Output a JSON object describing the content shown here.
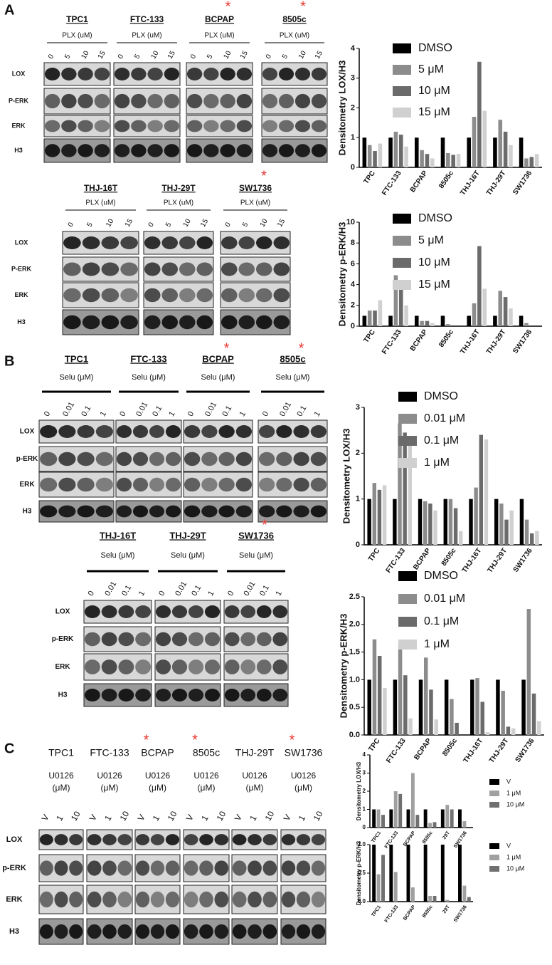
{
  "panels": [
    {
      "letter": "A",
      "blocks": [
        {
          "rows": [
            "LOX",
            "P-ERK",
            "ERK",
            "H3"
          ],
          "groups": [
            {
              "cell_line": "TPC1",
              "treatment": [
                "PLX (uM)"
              ],
              "doses": [
                "0",
                "5",
                "10",
                "15"
              ]
            },
            {
              "cell_line": "FTC-133",
              "treatment": [
                "PLX (uM)"
              ],
              "doses": [
                "0",
                "5",
                "10",
                "15"
              ]
            },
            {
              "cell_line": "BCPAP",
              "star": "*",
              "treatment": [
                "PLX (uM)"
              ],
              "doses": [
                "0",
                "5",
                "10",
                "15"
              ]
            },
            {
              "cell_line": "8505c",
              "star": "*",
              "treatment": [
                "PLX (uM)"
              ],
              "doses": [
                "0",
                "5",
                "10",
                "15"
              ]
            }
          ]
        },
        {
          "rows": [
            "LOX",
            "P-ERK",
            "ERK",
            "H3"
          ],
          "groups": [
            {
              "cell_line": "THJ-16T",
              "treatment": [
                "PLX (uM)"
              ],
              "doses": [
                "0",
                "5",
                "10",
                "15"
              ]
            },
            {
              "cell_line": "THJ-29T",
              "treatment": [
                "PLX (uM)"
              ],
              "doses": [
                "0",
                "5",
                "10",
                "15"
              ]
            },
            {
              "cell_line": "SW1736",
              "star": "*",
              "treatment": [
                "PLX (uM)"
              ],
              "doses": [
                "0",
                "5",
                "10",
                "15"
              ]
            }
          ]
        }
      ]
    },
    {
      "letter": "B",
      "blocks": [
        {
          "rows": [
            "LOX",
            "p-ERK",
            "ERK",
            "H3"
          ],
          "groups": [
            {
              "cell_line": "TPC1",
              "treatment": [
                "Selu (μM)"
              ],
              "doses": [
                "0",
                "0.01",
                "0.1",
                "1"
              ]
            },
            {
              "cell_line": "FTC-133",
              "treatment": [
                "Selu (μM)"
              ],
              "doses": [
                "0",
                "0.01",
                "0.1",
                "1"
              ]
            },
            {
              "cell_line": "BCPAP",
              "star": "*",
              "treatment": [
                "Selu (μM)"
              ],
              "doses": [
                "0",
                "0.01",
                "0.1",
                "1"
              ]
            },
            {
              "cell_line": "8505c",
              "star": "*",
              "treatment": [
                "Selu (μM)"
              ],
              "doses": [
                "0",
                "0.01",
                "0.1",
                "1"
              ]
            }
          ]
        },
        {
          "rows": [
            "LOX",
            "p-ERK",
            "ERK",
            "H3"
          ],
          "groups": [
            {
              "cell_line": "THJ-16T",
              "treatment": [
                "Selu (μM)"
              ],
              "doses": [
                "0",
                "0.01",
                "0.1",
                "1"
              ]
            },
            {
              "cell_line": "THJ-29T",
              "treatment": [
                "Selu (μM)"
              ],
              "doses": [
                "0",
                "0.01",
                "0.1",
                "1"
              ]
            },
            {
              "cell_line": "SW1736",
              "star": "*",
              "treatment": [
                "Selu (μM)"
              ],
              "doses": [
                "0",
                "0.01",
                "0.1",
                "1"
              ]
            }
          ]
        }
      ]
    },
    {
      "letter": "C",
      "blocks": [
        {
          "rows": [
            "LOX",
            "p-ERK",
            "ERK",
            "H3"
          ],
          "groups": [
            {
              "cell_line": "TPC1",
              "treatment": [
                "U0126",
                "(μM)"
              ],
              "doses": [
                "V",
                "1",
                "10"
              ]
            },
            {
              "cell_line": "FTC-133",
              "treatment": [
                "U0126",
                "(μM)"
              ],
              "doses": [
                "V",
                "1",
                "10"
              ]
            },
            {
              "cell_line": "BCPAP",
              "star": "*",
              "treatment": [
                "U0126",
                "(μM)"
              ],
              "doses": [
                "V",
                "1",
                "10"
              ]
            },
            {
              "cell_line": "8505c",
              "star": "*",
              "treatment": [
                "U0126",
                "(μM)"
              ],
              "doses": [
                "V",
                "1",
                "10"
              ]
            },
            {
              "cell_line": "THJ-29T",
              "treatment": [
                "U0126",
                "(μM)"
              ],
              "doses": [
                "V",
                "1",
                "10"
              ]
            },
            {
              "cell_line": "SW1736",
              "star": "*",
              "treatment": [
                "U0126",
                "(μM)"
              ],
              "doses": [
                "V",
                "1",
                "10"
              ]
            }
          ]
        }
      ]
    }
  ],
  "chart_data": [
    {
      "type": "bar",
      "y_label": "Densitometry LOX/H3",
      "categories": [
        "TPC",
        "FTC-133",
        "BCPAP",
        "8505c",
        "THJ-16T",
        "THJ-29T",
        "SW1736"
      ],
      "series": [
        {
          "name": "DMSO",
          "color": "#000000",
          "values": [
            1,
            1,
            1,
            1,
            1,
            1,
            1
          ]
        },
        {
          "name": "5 μM",
          "color": "#8c8c8c",
          "values": [
            0.75,
            1.2,
            0.58,
            0.48,
            1.7,
            1.6,
            0.3
          ]
        },
        {
          "name": "10 μM",
          "color": "#6b6b6b",
          "values": [
            0.55,
            1.1,
            0.45,
            0.42,
            3.55,
            1.2,
            0.35
          ]
        },
        {
          "name": "15 μM",
          "color": "#d0d0d0",
          "values": [
            0.8,
            0.7,
            0.3,
            0.45,
            1.9,
            0.75,
            0.45
          ]
        }
      ],
      "ylim": [
        0,
        4
      ],
      "yticks": [
        0,
        1,
        2,
        3,
        4
      ],
      "legend": "top-right"
    },
    {
      "type": "bar",
      "y_label": "Densitometry p-ERK/H3",
      "categories": [
        "TPC",
        "FTC-133",
        "BCPAP",
        "8505c",
        "THJ-16T",
        "THJ-29T",
        "SW1736"
      ],
      "series": [
        {
          "name": "DMSO",
          "color": "#000000",
          "values": [
            1,
            1,
            1,
            1,
            1,
            1,
            1
          ]
        },
        {
          "name": "5 μM",
          "color": "#8c8c8c",
          "values": [
            1.5,
            4.9,
            0.5,
            0.2,
            2.2,
            3.4,
            0.3
          ]
        },
        {
          "name": "10 μM",
          "color": "#6b6b6b",
          "values": [
            1.5,
            3.5,
            0.5,
            0,
            7.7,
            2.8,
            0
          ]
        },
        {
          "name": "15 μM",
          "color": "#d0d0d0",
          "values": [
            2.5,
            2.0,
            0.3,
            0,
            3.6,
            1.7,
            0
          ]
        }
      ],
      "ylim": [
        0,
        10
      ],
      "yticks": [
        0,
        2,
        4,
        6,
        8,
        10
      ],
      "legend": "top-right"
    },
    {
      "type": "bar",
      "y_label": "Densitometry LOX/H3",
      "categories": [
        "TPC",
        "FTC-133",
        "BCPAP",
        "8505c",
        "THJ-16T",
        "THJ-29T",
        "SW1736"
      ],
      "series": [
        {
          "name": "DMSO",
          "color": "#000000",
          "values": [
            1,
            1,
            1,
            1,
            1,
            1,
            1
          ]
        },
        {
          "name": "0.01 μM",
          "color": "#8c8c8c",
          "values": [
            1.35,
            2.65,
            0.95,
            1.0,
            1.25,
            0.9,
            0.55
          ]
        },
        {
          "name": "0.1 μM",
          "color": "#6b6b6b",
          "values": [
            1.2,
            2.45,
            0.9,
            0.8,
            2.4,
            0.55,
            0.25
          ]
        },
        {
          "name": "1 μM",
          "color": "#d0d0d0",
          "values": [
            1.3,
            2.35,
            0.75,
            0.3,
            2.3,
            0.75,
            0.3
          ]
        }
      ],
      "ylim": [
        0,
        3
      ],
      "yticks": [
        0,
        1,
        2,
        3
      ],
      "legend": "top-right"
    },
    {
      "type": "bar",
      "y_label": "Densitometry p-ERK/H3",
      "categories": [
        "TPC",
        "FTC-133",
        "BCPAP",
        "8505c",
        "THJ-16T",
        "THJ-29T",
        "SW1736"
      ],
      "series": [
        {
          "name": "DMSO",
          "color": "#000000",
          "values": [
            1,
            1,
            1,
            1,
            1,
            1,
            1
          ]
        },
        {
          "name": "0.01 μM",
          "color": "#8c8c8c",
          "values": [
            1.73,
            1.68,
            1.4,
            0.65,
            1.03,
            0.8,
            2.28
          ]
        },
        {
          "name": "0.1 μM",
          "color": "#6b6b6b",
          "values": [
            1.43,
            1.08,
            0.82,
            0.22,
            0.6,
            0.15,
            0.75
          ]
        },
        {
          "name": "1 μM",
          "color": "#d0d0d0",
          "values": [
            0.85,
            0.3,
            0.28,
            0,
            0.05,
            0.12,
            0.25
          ]
        }
      ],
      "ylim": [
        0,
        2.5
      ],
      "yticks": [
        {
          "value": 0,
          "label": "0.0"
        },
        0.5,
        {
          "value": 1,
          "label": "1.0"
        },
        1.5,
        {
          "value": 2,
          "label": "2.0"
        },
        2.5
      ],
      "legend": "top-right"
    },
    {
      "type": "bar",
      "y_label": "Densitometry LOX/H3",
      "categories": [
        "TPC1",
        "FTC-133",
        "BCPAP",
        "8505c",
        "29T",
        "SW1736"
      ],
      "series": [
        {
          "name": "V",
          "color": "#000000",
          "values": [
            1,
            1,
            1,
            1,
            1,
            1
          ]
        },
        {
          "name": "1 μM",
          "color": "#a0a0a0",
          "values": [
            1,
            2.0,
            3.0,
            0.25,
            1.25,
            0.35
          ]
        },
        {
          "name": "10 μM",
          "color": "#707070",
          "values": [
            0.7,
            1.85,
            0.7,
            0.3,
            1.0,
            0
          ]
        }
      ],
      "ylim": [
        0,
        4
      ],
      "yticks": [
        0,
        1,
        2,
        3,
        4
      ],
      "legend": "right"
    },
    {
      "type": "bar",
      "y_label": "Densitometry p-ERK/H3",
      "categories": [
        "TPC1",
        "FTC-133",
        "BCPAP",
        "8505c",
        "29T",
        "SW1736"
      ],
      "series": [
        {
          "name": "V",
          "color": "#000000",
          "values": [
            1,
            1,
            1,
            1,
            1,
            1
          ]
        },
        {
          "name": "1 μM",
          "color": "#a0a0a0",
          "values": [
            0.48,
            0.52,
            0.25,
            0.1,
            0.03,
            0.28
          ]
        },
        {
          "name": "10 μM",
          "color": "#707070",
          "values": [
            0.82,
            0,
            0,
            0.1,
            0,
            0.08
          ]
        }
      ],
      "ylim": [
        0,
        1
      ],
      "yticks": [
        {
          "value": 0,
          "label": "0.0"
        },
        0.5,
        {
          "value": 1,
          "label": "1.0"
        }
      ],
      "legend": "right"
    }
  ]
}
